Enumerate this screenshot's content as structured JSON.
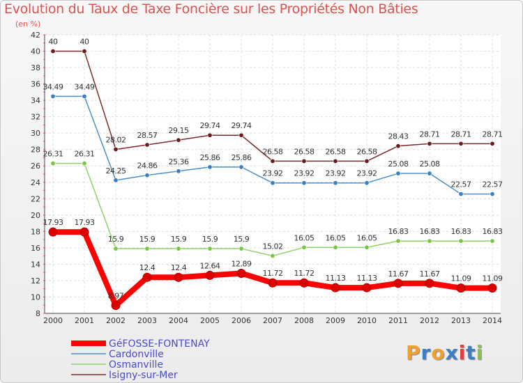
{
  "header": {
    "title": "Evolution du Taux de Taxe Foncière sur les Propriétés Non Bâties",
    "unit": "(en %)"
  },
  "logo": {
    "letters": [
      "P",
      "r",
      "o",
      "x",
      "i",
      "t",
      "i"
    ],
    "colors": [
      "#f0a030",
      "#3a7fc4",
      "#f0a030",
      "#3a7fc4",
      "#e04040",
      "#3a7fc4",
      "#8bc34a"
    ]
  },
  "chart_data": {
    "type": "line",
    "x": [
      "2000",
      "2001",
      "2002",
      "2003",
      "2004",
      "2005",
      "2006",
      "2007",
      "2008",
      "2009",
      "2010",
      "2011",
      "2012",
      "2013",
      "2014"
    ],
    "ylim": [
      8,
      42
    ],
    "yticks": [
      8,
      10,
      12,
      14,
      16,
      18,
      20,
      22,
      24,
      26,
      28,
      30,
      32,
      34,
      36,
      38,
      40,
      42
    ],
    "grid": true,
    "legend_position": "bottom-left",
    "series": [
      {
        "name": "Isigny-sur-Mer",
        "color": "#7b2b2b",
        "marker": "#6a1c1c",
        "width": 1.5,
        "values": [
          40,
          40,
          28.02,
          28.57,
          29.15,
          29.74,
          29.74,
          26.58,
          26.58,
          26.58,
          26.58,
          28.43,
          28.71,
          28.71,
          28.71
        ],
        "labels": [
          "40",
          "40",
          "28.02",
          "28.57",
          "29.15",
          "29.74",
          "29.74",
          "26.58",
          "26.58",
          "26.58",
          "26.58",
          "28.43",
          "28.71",
          "28.71",
          "28.71"
        ]
      },
      {
        "name": "Cardonville",
        "color": "#4a90c8",
        "marker": "#3a7fc4",
        "width": 1.5,
        "values": [
          34.49,
          34.49,
          24.25,
          24.86,
          25.36,
          25.86,
          25.86,
          23.92,
          23.92,
          23.92,
          23.92,
          25.08,
          25.08,
          22.57,
          22.57
        ],
        "labels": [
          "34.49",
          "34.49",
          "24.25",
          "24.86",
          "25.36",
          "25.86",
          "25.86",
          "23.92",
          "23.92",
          "23.92",
          "23.92",
          "25.08",
          "25.08",
          "22.57",
          "22.57"
        ]
      },
      {
        "name": "Osmanville",
        "color": "#8fd16a",
        "marker": "#7cc444",
        "width": 1.5,
        "values": [
          26.31,
          26.31,
          15.9,
          15.9,
          15.9,
          15.9,
          15.9,
          15.02,
          16.05,
          16.05,
          16.05,
          16.83,
          16.83,
          16.83,
          16.83
        ],
        "labels": [
          "26.31",
          "26.31",
          "15.9",
          "15.9",
          "15.9",
          "15.9",
          "15.9",
          "15.02",
          "16.05",
          "16.05",
          "16.05",
          "16.83",
          "16.83",
          "16.83",
          "16.83"
        ]
      },
      {
        "name": "GéFOSSE-FONTENAY",
        "color": "#ff0000",
        "marker": "#dd0000",
        "width": 8,
        "values": [
          17.93,
          17.93,
          8.97,
          12.4,
          12.4,
          12.64,
          12.89,
          11.72,
          11.72,
          11.13,
          11.13,
          11.67,
          11.67,
          11.09,
          11.09
        ],
        "labels": [
          "17.93",
          "17.93",
          "8.97",
          "12.4",
          "12.4",
          "12.64",
          "12.89",
          "11.72",
          "11.72",
          "11.13",
          "11.13",
          "11.67",
          "11.67",
          "11.09",
          "11.09"
        ]
      }
    ],
    "legend_order": [
      "GéFOSSE-FONTENAY",
      "Cardonville",
      "Osmanville",
      "Isigny-sur-Mer"
    ]
  }
}
